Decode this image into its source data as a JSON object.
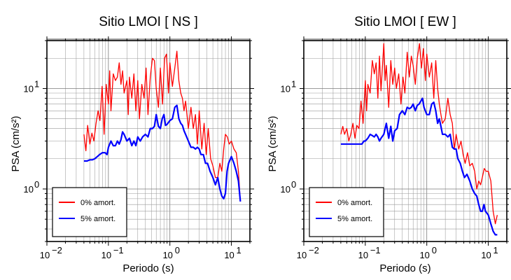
{
  "chart_data": [
    {
      "type": "line",
      "title": "Sitio LMOI [ NS ]",
      "xlabel": "Periodo (s)",
      "ylabel": "PSA (cm/s²)",
      "xscale": "log",
      "yscale": "log",
      "xlim": [
        0.01,
        20
      ],
      "ylim": [
        0.3,
        30
      ],
      "xticks": [
        {
          "value": 0.01,
          "base": "10",
          "exp": "−2"
        },
        {
          "value": 0.1,
          "base": "10",
          "exp": "−1"
        },
        {
          "value": 1,
          "base": "10",
          "exp": "0"
        },
        {
          "value": 10,
          "base": "10",
          "exp": "1"
        }
      ],
      "yticks": [
        {
          "value": 1,
          "base": "10",
          "exp": "0"
        },
        {
          "value": 10,
          "base": "10",
          "exp": "1"
        }
      ],
      "grid": true,
      "legend_position": "bottom-left",
      "series": [
        {
          "name": "0% amort.",
          "color": "#ff0000",
          "x": [
            0.04,
            0.043,
            0.046,
            0.05,
            0.054,
            0.058,
            0.063,
            0.068,
            0.073,
            0.079,
            0.085,
            0.092,
            0.1,
            0.105,
            0.11,
            0.12,
            0.13,
            0.14,
            0.15,
            0.16,
            0.17,
            0.18,
            0.2,
            0.21,
            0.22,
            0.24,
            0.26,
            0.28,
            0.3,
            0.32,
            0.35,
            0.38,
            0.41,
            0.44,
            0.48,
            0.52,
            0.56,
            0.6,
            0.65,
            0.7,
            0.76,
            0.82,
            0.88,
            0.95,
            1.0,
            1.1,
            1.2,
            1.3,
            1.4,
            1.5,
            1.6,
            1.7,
            1.8,
            2.0,
            2.2,
            2.4,
            2.6,
            2.8,
            3.0,
            3.3,
            3.6,
            3.9,
            4.2,
            4.6,
            5.0,
            5.5,
            6.0,
            6.5,
            7.0,
            7.5,
            8.0,
            8.6,
            9.2,
            10.0,
            11.0,
            12.0,
            13.0,
            14.0
          ],
          "values": [
            3.5,
            2.4,
            4.3,
            2.8,
            3.6,
            3.0,
            4.5,
            6.0,
            4.8,
            10.5,
            3.5,
            11.0,
            7.0,
            15.0,
            6.0,
            14.0,
            12.0,
            13.0,
            18.0,
            11.0,
            15.0,
            9.0,
            12.0,
            5.5,
            13.0,
            8.0,
            14.0,
            6.0,
            12.0,
            5.0,
            11.0,
            8.0,
            16.0,
            5.5,
            13.0,
            20.0,
            19.0,
            10.0,
            6.5,
            16.0,
            7.0,
            20.0,
            22.0,
            9.0,
            18.0,
            10.5,
            16.0,
            23.5,
            12.0,
            9.0,
            8.0,
            6.0,
            7.5,
            4.0,
            6.5,
            4.0,
            5.5,
            2.8,
            6.0,
            2.5,
            4.5,
            2.2,
            4.0,
            2.0,
            1.7,
            1.3,
            1.3,
            1.8,
            1.5,
            2.5,
            3.5,
            3.3,
            2.8,
            3.0,
            2.5,
            2.3,
            1.5,
            0.75
          ]
        },
        {
          "name": "5% amort.",
          "color": "#0000ff",
          "x": [
            0.04,
            0.045,
            0.05,
            0.055,
            0.06,
            0.066,
            0.072,
            0.08,
            0.088,
            0.095,
            0.1,
            0.11,
            0.12,
            0.13,
            0.14,
            0.15,
            0.16,
            0.17,
            0.18,
            0.2,
            0.22,
            0.24,
            0.26,
            0.28,
            0.3,
            0.33,
            0.36,
            0.4,
            0.44,
            0.48,
            0.52,
            0.56,
            0.6,
            0.65,
            0.7,
            0.75,
            0.8,
            0.85,
            0.9,
            1.0,
            1.1,
            1.2,
            1.3,
            1.4,
            1.5,
            1.6,
            1.7,
            1.8,
            2.0,
            2.2,
            2.4,
            2.6,
            2.8,
            3.0,
            3.2,
            3.5,
            3.8,
            4.1,
            4.5,
            5.0,
            5.5,
            6.0,
            6.5,
            7.0,
            7.5,
            8.0,
            8.5,
            9.0,
            10.0,
            11.0,
            12.0,
            13.0,
            14.0
          ],
          "values": [
            1.9,
            1.9,
            1.95,
            1.95,
            2.0,
            2.1,
            2.2,
            2.3,
            2.3,
            2.2,
            2.6,
            3.0,
            2.7,
            2.7,
            3.0,
            2.8,
            3.1,
            3.7,
            3.5,
            3.0,
            3.2,
            2.7,
            3.0,
            2.7,
            3.3,
            3.0,
            3.3,
            3.5,
            3.3,
            4.0,
            4.0,
            4.2,
            5.5,
            4.2,
            4.0,
            5.0,
            5.5,
            4.3,
            4.4,
            4.8,
            5.0,
            6.5,
            6.8,
            5.0,
            4.5,
            4.3,
            3.8,
            3.5,
            3.0,
            2.6,
            2.6,
            2.5,
            2.6,
            2.5,
            2.2,
            2.2,
            1.8,
            1.8,
            1.5,
            1.3,
            1.1,
            1.3,
            1.0,
            0.85,
            0.8,
            0.9,
            1.5,
            1.8,
            2.1,
            1.8,
            1.5,
            1.2,
            0.75
          ]
        }
      ]
    },
    {
      "type": "line",
      "title": "Sitio LMOI [ EW ]",
      "xlabel": "Periodo (s)",
      "ylabel": "PSA (cm/s²)",
      "xscale": "log",
      "yscale": "log",
      "xlim": [
        0.01,
        20
      ],
      "ylim": [
        0.3,
        30
      ],
      "xticks": [
        {
          "value": 0.01,
          "base": "10",
          "exp": "−2"
        },
        {
          "value": 0.1,
          "base": "10",
          "exp": "−1"
        },
        {
          "value": 1,
          "base": "10",
          "exp": "0"
        },
        {
          "value": 10,
          "base": "10",
          "exp": "1"
        }
      ],
      "yticks": [
        {
          "value": 1,
          "base": "10",
          "exp": "0"
        },
        {
          "value": 10,
          "base": "10",
          "exp": "1"
        }
      ],
      "grid": true,
      "legend_position": "bottom-left",
      "series": [
        {
          "name": "0% amort.",
          "color": "#ff0000",
          "x": [
            0.04,
            0.043,
            0.046,
            0.05,
            0.054,
            0.058,
            0.063,
            0.068,
            0.073,
            0.079,
            0.085,
            0.092,
            0.1,
            0.105,
            0.11,
            0.12,
            0.13,
            0.14,
            0.15,
            0.16,
            0.17,
            0.18,
            0.2,
            0.21,
            0.22,
            0.24,
            0.26,
            0.28,
            0.3,
            0.32,
            0.35,
            0.38,
            0.41,
            0.44,
            0.48,
            0.52,
            0.56,
            0.6,
            0.65,
            0.7,
            0.76,
            0.82,
            0.88,
            0.95,
            1.0,
            1.1,
            1.2,
            1.3,
            1.4,
            1.5,
            1.6,
            1.7,
            1.8,
            2.0,
            2.2,
            2.4,
            2.6,
            2.8,
            3.0,
            3.3,
            3.6,
            3.9,
            4.2,
            4.6,
            5.0,
            5.5,
            6.0,
            6.5,
            7.0,
            7.5,
            8.0,
            8.6,
            9.2,
            10.0,
            11.0,
            12.0,
            13.0,
            14.0
          ],
          "values": [
            3.5,
            4.2,
            3.5,
            4.0,
            3.0,
            3.5,
            4.5,
            3.2,
            4.3,
            4.0,
            7.5,
            4.5,
            12.0,
            6.0,
            11.0,
            9.0,
            19.0,
            14.0,
            18.0,
            8.0,
            21.0,
            9.5,
            28.0,
            12.0,
            17.0,
            6.5,
            19.0,
            11.0,
            16.0,
            10.0,
            14.0,
            7.0,
            13.0,
            9.0,
            23.0,
            13.0,
            21.0,
            17.0,
            11.0,
            20.0,
            28.0,
            16.0,
            25.0,
            12.0,
            22.0,
            13.0,
            18.0,
            8.0,
            19.0,
            10.0,
            7.0,
            5.5,
            4.5,
            5.0,
            8.0,
            5.5,
            4.5,
            2.5,
            3.5,
            2.5,
            3.0,
            2.2,
            1.8,
            2.3,
            1.7,
            1.8,
            1.5,
            1.0,
            1.2,
            1.1,
            1.3,
            1.6,
            1.5,
            1.5,
            1.2,
            0.6,
            0.45,
            0.55
          ]
        },
        {
          "name": "5% amort.",
          "color": "#0000ff",
          "x": [
            0.04,
            0.045,
            0.05,
            0.055,
            0.06,
            0.066,
            0.072,
            0.08,
            0.088,
            0.095,
            0.1,
            0.11,
            0.12,
            0.13,
            0.14,
            0.15,
            0.16,
            0.17,
            0.18,
            0.2,
            0.22,
            0.24,
            0.26,
            0.28,
            0.3,
            0.33,
            0.36,
            0.4,
            0.44,
            0.48,
            0.52,
            0.56,
            0.6,
            0.65,
            0.7,
            0.75,
            0.8,
            0.85,
            0.9,
            1.0,
            1.1,
            1.2,
            1.3,
            1.4,
            1.5,
            1.6,
            1.7,
            1.8,
            2.0,
            2.2,
            2.4,
            2.6,
            2.8,
            3.0,
            3.2,
            3.5,
            3.8,
            4.1,
            4.5,
            5.0,
            5.5,
            6.0,
            6.5,
            7.0,
            7.5,
            8.0,
            8.5,
            9.0,
            10.0,
            11.0,
            12.0,
            13.0,
            14.0
          ],
          "values": [
            2.8,
            2.8,
            2.8,
            2.8,
            2.8,
            2.8,
            2.8,
            2.8,
            2.8,
            3.0,
            3.0,
            3.2,
            3.5,
            3.4,
            3.3,
            3.5,
            3.3,
            3.0,
            3.2,
            3.5,
            4.5,
            3.2,
            4.2,
            3.0,
            3.8,
            4.0,
            5.5,
            6.0,
            5.5,
            6.5,
            6.3,
            6.5,
            7.0,
            6.0,
            6.8,
            7.0,
            7.5,
            8.0,
            6.5,
            5.5,
            5.5,
            7.0,
            7.3,
            6.0,
            4.5,
            5.0,
            4.2,
            3.5,
            3.5,
            3.3,
            3.5,
            2.6,
            2.5,
            2.5,
            2.0,
            1.8,
            1.5,
            1.3,
            1.4,
            1.2,
            1.0,
            0.9,
            0.85,
            0.7,
            0.6,
            0.6,
            0.7,
            0.6,
            0.55,
            0.45,
            0.38,
            0.35,
            0.35
          ]
        }
      ]
    }
  ]
}
